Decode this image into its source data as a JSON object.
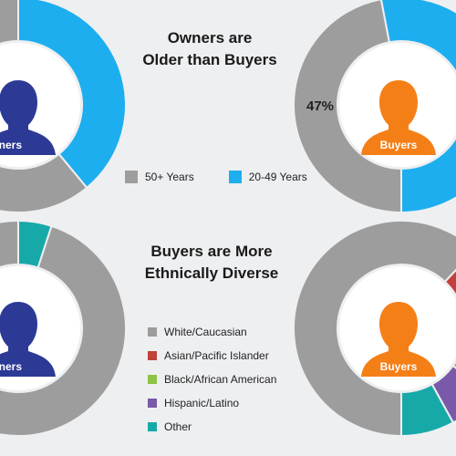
{
  "titles": {
    "age_line1": "Owners are",
    "age_line2": "Older than Buyers",
    "eth_line1": "Buyers are More",
    "eth_line2": "Ethnically Diverse"
  },
  "chart_data": [
    {
      "type": "pie",
      "title": "Owners are Older than Buyers",
      "subject": "Owners",
      "categories": [
        "50+ Years",
        "20-49 Years"
      ],
      "values": [
        61,
        39
      ],
      "colors": [
        "#9d9d9d",
        "#1daeef"
      ]
    },
    {
      "type": "pie",
      "title": "Owners are Older than Buyers",
      "subject": "Buyers",
      "categories": [
        "50+ Years",
        "20-49 Years"
      ],
      "values": [
        47,
        53
      ],
      "colors": [
        "#9d9d9d",
        "#1daeef"
      ],
      "data_label": "47%"
    },
    {
      "type": "pie",
      "title": "Buyers are More Ethnically Diverse",
      "subject": "Owners",
      "categories": [
        "White/Caucasian",
        "Asian/Pacific Islander",
        "Black/African American",
        "Hispanic/Latino",
        "Other"
      ],
      "values": [
        95,
        0,
        0,
        0,
        5
      ],
      "colors": [
        "#9d9d9d",
        "#c2413a",
        "#8dc344",
        "#7a59a8",
        "#17a9a8"
      ]
    },
    {
      "type": "pie",
      "title": "Buyers are More Ethnically Diverse",
      "subject": "Buyers",
      "categories": [
        "White/Caucasian",
        "Asian/Pacific Islander",
        "Black/African American",
        "Hispanic/Latino",
        "Other"
      ],
      "values": [
        62,
        15,
        8,
        7,
        8
      ],
      "colors": [
        "#9d9d9d",
        "#c2413a",
        "#8dc344",
        "#7a59a8",
        "#17a9a8"
      ]
    }
  ],
  "labels": {
    "owners": "Owners",
    "buyers": "Buyers"
  },
  "age_legend": [
    {
      "label": "50+ Years",
      "color": "#9d9d9d"
    },
    {
      "label": "20-49 Years",
      "color": "#1daeef"
    }
  ],
  "eth_legend": [
    {
      "label": "White/Caucasian",
      "color": "#9d9d9d"
    },
    {
      "label": "Asian/Pacific Islander",
      "color": "#c2413a"
    },
    {
      "label": "Black/African American",
      "color": "#8dc344"
    },
    {
      "label": "Hispanic/Latino",
      "color": "#7a59a8"
    },
    {
      "label": "Other",
      "color": "#17a9a8"
    }
  ],
  "avatar_colors": {
    "owners": "#2c3a96",
    "buyers": "#f57f17"
  }
}
